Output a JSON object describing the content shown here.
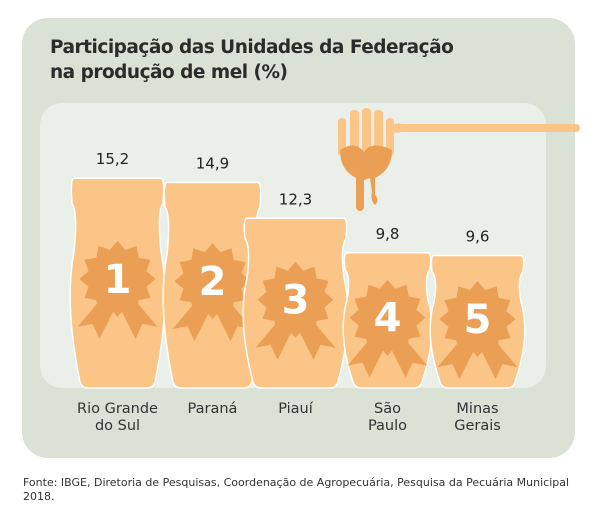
{
  "chart_data": {
    "type": "bar",
    "title_line1": "Participação das Unidades da Federação",
    "title_line2": "na produção de mel (%)",
    "categories": [
      "Rio Grande do Sul",
      "Paraná",
      "Piauí",
      "São Paulo",
      "Minas Gerais"
    ],
    "category_lines": [
      [
        "Rio Grande",
        "do Sul"
      ],
      [
        "Paraná"
      ],
      [
        "Piauí"
      ],
      [
        "São",
        "Paulo"
      ],
      [
        "Minas",
        "Gerais"
      ]
    ],
    "values": [
      15.2,
      14.9,
      12.3,
      9.8,
      9.6
    ],
    "value_labels": [
      "15,2",
      "14,9",
      "12,3",
      "9,8",
      "9,6"
    ],
    "ranks": [
      "1",
      "2",
      "3",
      "4",
      "5"
    ],
    "unit": "%"
  },
  "source": "Fonte: IBGE, Diretoria de Pesquisas, Coordenação de Agropecuária, Pesquisa da Pecuária Municipal 2018.",
  "colors": {
    "jar": "#fbc587",
    "medal": "#eb9f55",
    "honey": "#eb9f55",
    "card": "#d9e2d5",
    "panel": "#eaefe9"
  }
}
